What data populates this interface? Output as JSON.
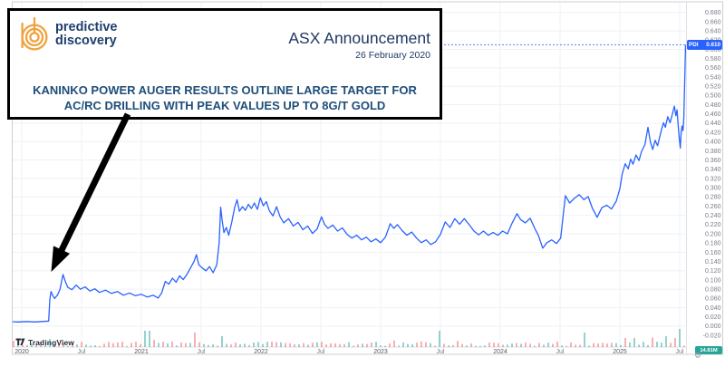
{
  "header": {
    "logo": {
      "line1": "predictive",
      "line2": "discovery"
    },
    "announcement_title": "ASX Announcement",
    "announcement_date": "26 February 2020",
    "headline_line1": "KANINKO POWER AUGER RESULTS OUTLINE LARGE TARGET FOR",
    "headline_line2": "AC/RC DRILLING WITH PEAK VALUES UP TO 8G/T GOLD"
  },
  "watermark": {
    "label": "TradingView"
  },
  "price_tag": {
    "symbol": "PDI",
    "price": "0.610"
  },
  "volume_tag": {
    "value": "14.81M"
  },
  "icons": {
    "gear": "⚙"
  },
  "colors": {
    "line": "#2962ff",
    "price_tag_bg": "#2962ff",
    "volume_tag_bg": "#26a69a",
    "volume_up": "rgba(38,166,154,0.55)",
    "volume_down": "rgba(239,83,80,0.5)",
    "axis_text": "#787b86",
    "grid": "#eef1f7",
    "navy": "#1f3864",
    "headline_blue": "#1f4e79"
  },
  "chart_data": {
    "type": "line",
    "title": "PDI share price with ASX announcement annotation",
    "legend": [],
    "grid": true,
    "last_price": 0.61,
    "ylim": [
      -0.03,
      0.7
    ],
    "xlim_years": [
      2019.9,
      2025.56
    ],
    "y_ticks": [
      "0.680",
      "0.660",
      "0.640",
      "0.620",
      "0.600",
      "0.580",
      "0.560",
      "0.540",
      "0.520",
      "0.500",
      "0.480",
      "0.460",
      "0.440",
      "0.420",
      "0.400",
      "0.380",
      "0.360",
      "0.340",
      "0.320",
      "0.300",
      "0.280",
      "0.260",
      "0.240",
      "0.220",
      "0.200",
      "0.180",
      "0.160",
      "0.140",
      "0.120",
      "0.100",
      "0.080",
      "0.060",
      "0.040",
      "0.020",
      "0.000",
      "-0.020"
    ],
    "x_ticks": [
      {
        "label": "2020",
        "t": 2020,
        "type": "year"
      },
      {
        "label": "Jul",
        "t": 2020.5,
        "type": "month"
      },
      {
        "label": "2021",
        "t": 2021,
        "type": "year"
      },
      {
        "label": "Jul",
        "t": 2021.5,
        "type": "month"
      },
      {
        "label": "2022",
        "t": 2022,
        "type": "year"
      },
      {
        "label": "Jul",
        "t": 2022.5,
        "type": "month"
      },
      {
        "label": "2023",
        "t": 2023,
        "type": "year"
      },
      {
        "label": "Jul",
        "t": 2023.5,
        "type": "month"
      },
      {
        "label": "2024",
        "t": 2024,
        "type": "year"
      },
      {
        "label": "Jul",
        "t": 2024.5,
        "type": "month"
      },
      {
        "label": "2025",
        "t": 2025,
        "type": "year"
      },
      {
        "label": "Jul",
        "t": 2025.5,
        "type": "month"
      }
    ],
    "series": [
      {
        "name": "PDI",
        "points": [
          [
            2019.9,
            0.01
          ],
          [
            2019.97,
            0.009
          ],
          [
            2020.04,
            0.01
          ],
          [
            2020.11,
            0.009
          ],
          [
            2020.17,
            0.01
          ],
          [
            2020.225,
            0.011
          ],
          [
            2020.235,
            0.058
          ],
          [
            2020.245,
            0.075
          ],
          [
            2020.26,
            0.066
          ],
          [
            2020.275,
            0.06
          ],
          [
            2020.3,
            0.068
          ],
          [
            2020.32,
            0.08
          ],
          [
            2020.345,
            0.112
          ],
          [
            2020.365,
            0.096
          ],
          [
            2020.385,
            0.084
          ],
          [
            2020.42,
            0.079
          ],
          [
            2020.455,
            0.089
          ],
          [
            2020.49,
            0.08
          ],
          [
            2020.53,
            0.085
          ],
          [
            2020.57,
            0.076
          ],
          [
            2020.61,
            0.081
          ],
          [
            2020.65,
            0.073
          ],
          [
            2020.7,
            0.078
          ],
          [
            2020.75,
            0.071
          ],
          [
            2020.8,
            0.075
          ],
          [
            2020.85,
            0.067
          ],
          [
            2020.9,
            0.072
          ],
          [
            2020.95,
            0.066
          ],
          [
            2021.0,
            0.069
          ],
          [
            2021.05,
            0.063
          ],
          [
            2021.1,
            0.067
          ],
          [
            2021.14,
            0.061
          ],
          [
            2021.17,
            0.072
          ],
          [
            2021.2,
            0.097
          ],
          [
            2021.23,
            0.091
          ],
          [
            2021.26,
            0.104
          ],
          [
            2021.29,
            0.095
          ],
          [
            2021.32,
            0.109
          ],
          [
            2021.35,
            0.101
          ],
          [
            2021.38,
            0.112
          ],
          [
            2021.41,
            0.126
          ],
          [
            2021.44,
            0.14
          ],
          [
            2021.46,
            0.155
          ],
          [
            2021.48,
            0.133
          ],
          [
            2021.51,
            0.126
          ],
          [
            2021.54,
            0.12
          ],
          [
            2021.57,
            0.129
          ],
          [
            2021.6,
            0.116
          ],
          [
            2021.63,
            0.133
          ],
          [
            2021.65,
            0.18
          ],
          [
            2021.663,
            0.258
          ],
          [
            2021.676,
            0.228
          ],
          [
            2021.69,
            0.203
          ],
          [
            2021.71,
            0.214
          ],
          [
            2021.73,
            0.197
          ],
          [
            2021.755,
            0.225
          ],
          [
            2021.78,
            0.258
          ],
          [
            2021.8,
            0.274
          ],
          [
            2021.82,
            0.249
          ],
          [
            2021.845,
            0.259
          ],
          [
            2021.87,
            0.251
          ],
          [
            2021.895,
            0.264
          ],
          [
            2021.92,
            0.255
          ],
          [
            2021.945,
            0.267
          ],
          [
            2021.97,
            0.253
          ],
          [
            2021.995,
            0.278
          ],
          [
            2022.02,
            0.261
          ],
          [
            2022.045,
            0.27
          ],
          [
            2022.07,
            0.25
          ],
          [
            2022.1,
            0.239
          ],
          [
            2022.13,
            0.259
          ],
          [
            2022.16,
            0.237
          ],
          [
            2022.19,
            0.224
          ],
          [
            2022.23,
            0.233
          ],
          [
            2022.27,
            0.217
          ],
          [
            2022.31,
            0.225
          ],
          [
            2022.35,
            0.209
          ],
          [
            2022.39,
            0.217
          ],
          [
            2022.43,
            0.201
          ],
          [
            2022.47,
            0.211
          ],
          [
            2022.505,
            0.237
          ],
          [
            2022.53,
            0.221
          ],
          [
            2022.56,
            0.212
          ],
          [
            2022.6,
            0.219
          ],
          [
            2022.64,
            0.206
          ],
          [
            2022.68,
            0.213
          ],
          [
            2022.72,
            0.199
          ],
          [
            2022.76,
            0.191
          ],
          [
            2022.8,
            0.197
          ],
          [
            2022.84,
            0.187
          ],
          [
            2022.88,
            0.193
          ],
          [
            2022.92,
            0.183
          ],
          [
            2022.96,
            0.189
          ],
          [
            2023.0,
            0.181
          ],
          [
            2023.04,
            0.193
          ],
          [
            2023.08,
            0.222
          ],
          [
            2023.11,
            0.212
          ],
          [
            2023.14,
            0.22
          ],
          [
            2023.18,
            0.207
          ],
          [
            2023.22,
            0.197
          ],
          [
            2023.26,
            0.204
          ],
          [
            2023.3,
            0.191
          ],
          [
            2023.34,
            0.181
          ],
          [
            2023.38,
            0.187
          ],
          [
            2023.42,
            0.177
          ],
          [
            2023.46,
            0.183
          ],
          [
            2023.5,
            0.199
          ],
          [
            2023.54,
            0.226
          ],
          [
            2023.58,
            0.214
          ],
          [
            2023.62,
            0.233
          ],
          [
            2023.66,
            0.221
          ],
          [
            2023.7,
            0.233
          ],
          [
            2023.74,
            0.22
          ],
          [
            2023.78,
            0.206
          ],
          [
            2023.82,
            0.198
          ],
          [
            2023.86,
            0.206
          ],
          [
            2023.9,
            0.197
          ],
          [
            2023.94,
            0.203
          ],
          [
            2023.98,
            0.197
          ],
          [
            2024.02,
            0.206
          ],
          [
            2024.06,
            0.2
          ],
          [
            2024.1,
            0.224
          ],
          [
            2024.14,
            0.244
          ],
          [
            2024.17,
            0.231
          ],
          [
            2024.21,
            0.224
          ],
          [
            2024.25,
            0.234
          ],
          [
            2024.29,
            0.211
          ],
          [
            2024.32,
            0.196
          ],
          [
            2024.355,
            0.169
          ],
          [
            2024.39,
            0.181
          ],
          [
            2024.43,
            0.187
          ],
          [
            2024.47,
            0.179
          ],
          [
            2024.505,
            0.191
          ],
          [
            2024.525,
            0.238
          ],
          [
            2024.545,
            0.283
          ],
          [
            2024.58,
            0.267
          ],
          [
            2024.62,
            0.277
          ],
          [
            2024.66,
            0.285
          ],
          [
            2024.7,
            0.274
          ],
          [
            2024.735,
            0.281
          ],
          [
            2024.77,
            0.256
          ],
          [
            2024.81,
            0.236
          ],
          [
            2024.85,
            0.257
          ],
          [
            2024.89,
            0.262
          ],
          [
            2024.93,
            0.254
          ],
          [
            2024.97,
            0.271
          ],
          [
            2025.0,
            0.298
          ],
          [
            2025.02,
            0.33
          ],
          [
            2025.045,
            0.352
          ],
          [
            2025.07,
            0.341
          ],
          [
            2025.09,
            0.362
          ],
          [
            2025.11,
            0.351
          ],
          [
            2025.135,
            0.371
          ],
          [
            2025.16,
            0.359
          ],
          [
            2025.18,
            0.378
          ],
          [
            2025.21,
            0.394
          ],
          [
            2025.235,
            0.431
          ],
          [
            2025.255,
            0.399
          ],
          [
            2025.275,
            0.383
          ],
          [
            2025.295,
            0.403
          ],
          [
            2025.315,
            0.391
          ],
          [
            2025.335,
            0.412
          ],
          [
            2025.35,
            0.428
          ],
          [
            2025.365,
            0.441
          ],
          [
            2025.38,
            0.431
          ],
          [
            2025.4,
            0.454
          ],
          [
            2025.42,
            0.441
          ],
          [
            2025.44,
            0.461
          ],
          [
            2025.455,
            0.477
          ],
          [
            2025.468,
            0.456
          ],
          [
            2025.478,
            0.469
          ],
          [
            2025.488,
            0.433
          ],
          [
            2025.497,
            0.406
          ],
          [
            2025.505,
            0.386
          ],
          [
            2025.512,
            0.419
          ],
          [
            2025.52,
            0.434
          ],
          [
            2025.528,
            0.424
          ],
          [
            2025.535,
            0.453
          ],
          [
            2025.542,
            0.528
          ],
          [
            2025.549,
            0.61
          ]
        ]
      }
    ],
    "volume_spikes": [
      [
        2020.25,
        0.45,
        "u"
      ],
      [
        2021.05,
        0.9,
        "u"
      ],
      [
        2021.46,
        0.8,
        "d"
      ],
      [
        2021.66,
        0.6,
        "u"
      ],
      [
        2022.09,
        0.3,
        "d"
      ],
      [
        2023.48,
        0.9,
        "u"
      ],
      [
        2024.7,
        0.8,
        "u"
      ],
      [
        2025.12,
        0.5,
        "u"
      ],
      [
        2025.38,
        0.6,
        "u"
      ],
      [
        2025.45,
        0.5,
        "d"
      ],
      [
        2025.51,
        1.0,
        "u"
      ]
    ]
  }
}
